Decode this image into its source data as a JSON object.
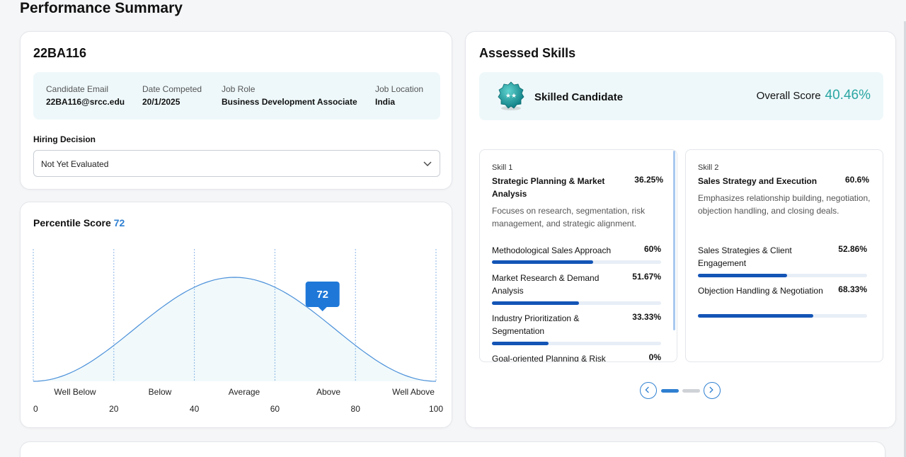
{
  "page": {
    "title": "Performance Summary"
  },
  "candidate": {
    "id": "22BA116",
    "fields": [
      {
        "label": "Candidate Email",
        "value": "22BA116@srcc.edu"
      },
      {
        "label": "Date Competed",
        "value": "20/1/2025"
      },
      {
        "label": "Job Role",
        "value": "Business Development Associate"
      },
      {
        "label": "Job Location",
        "value": "India"
      }
    ],
    "hiring_decision": {
      "label": "Hiring Decision",
      "value": "Not Yet Evaluated"
    }
  },
  "percentile": {
    "label": "Percentile Score",
    "value": "72",
    "chart_data": {
      "type": "area",
      "title": "",
      "x_range": [
        0,
        100
      ],
      "x_ticks": [
        "0",
        "20",
        "40",
        "60",
        "80",
        "100"
      ],
      "bands": [
        "Well Below",
        "Below",
        "Average",
        "Above",
        "Well Above"
      ],
      "marker": {
        "x": 72,
        "label": "72"
      },
      "color": "#4a90d9"
    }
  },
  "skills": {
    "title": "Assessed Skills",
    "badge_label": "Skilled Candidate",
    "overall_label": "Overall Score",
    "overall_value": "40.46%",
    "cards": [
      {
        "num": "Skill 1",
        "name": "Strategic Planning & Market Analysis",
        "score": "36.25%",
        "desc": "Focuses on research, segmentation, risk management, and strategic alignment.",
        "subs": [
          {
            "name": "Methodological Sales Approach",
            "score": "60%",
            "pct": 60
          },
          {
            "name": "Market Research & Demand Analysis",
            "score": "51.67%",
            "pct": 51.67
          },
          {
            "name": "Industry Prioritization & Segmentation",
            "score": "33.33%",
            "pct": 33.33
          },
          {
            "name": "Goal-oriented Planning & Risk",
            "score": "0%",
            "pct": 0
          }
        ]
      },
      {
        "num": "Skill 2",
        "name": "Sales Strategy and Execution",
        "score": "60.6%",
        "desc": "Emphasizes relationship building, negotiation, objection handling, and closing deals.",
        "subs": [
          {
            "name": "Sales Strategies & Client Engagement",
            "score": "52.86%",
            "pct": 52.86
          },
          {
            "name": "Objection Handling & Negotiation",
            "score": "68.33%",
            "pct": 68.33
          }
        ]
      }
    ]
  },
  "colors": {
    "accent": "#2f80d1",
    "teal": "#2aa6a3",
    "bar": "#1455b6",
    "info_bg": "#eef8fa"
  }
}
